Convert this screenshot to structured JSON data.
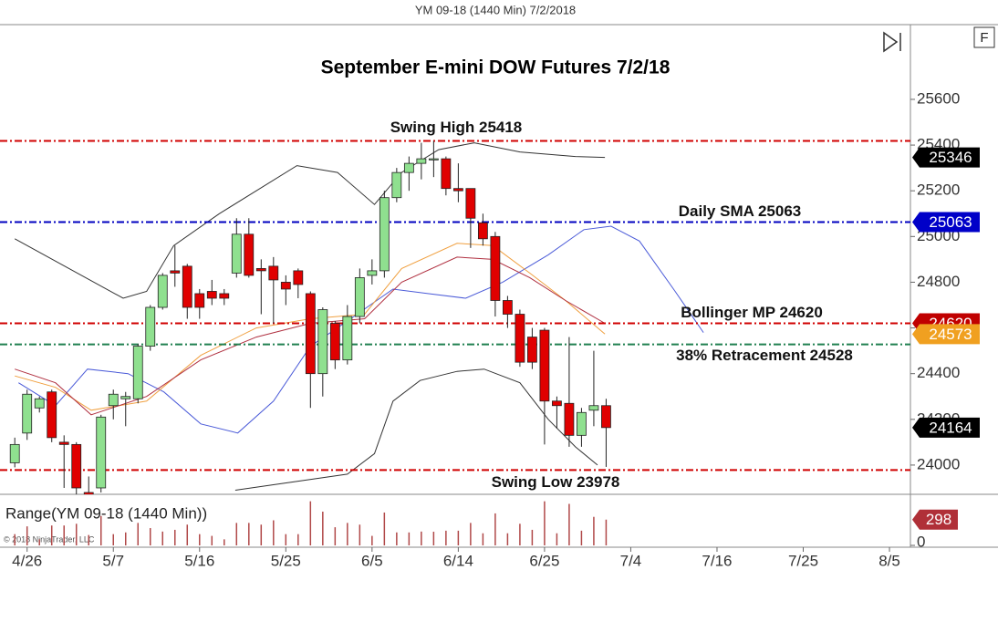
{
  "header": "YM 09-18 (1440 Min)  7/2/2018",
  "chart_data": [
    {
      "type": "candlestick",
      "title": "September E-mini DOW Futures 7/2/18",
      "up_color": "#8fe08f",
      "down_color": "#e00000",
      "open": [
        24010,
        24140,
        24250,
        24320,
        24100,
        24090,
        23880,
        23900,
        24260,
        24290,
        24290,
        24520,
        24690,
        24850,
        24870,
        24750,
        24760,
        24750,
        24840,
        25010,
        24860,
        24870,
        24800,
        24850,
        24750,
        24400,
        24620,
        24460,
        24650,
        24830,
        24850,
        25170,
        25280,
        25320,
        25335,
        25340,
        25210,
        25210,
        25060,
        25000,
        24720,
        24660,
        24560,
        24590,
        24280,
        24270,
        24130,
        24240,
        24260
      ],
      "high": [
        24120,
        24330,
        24300,
        24330,
        24130,
        24100,
        23950,
        24220,
        24330,
        24320,
        24530,
        24700,
        24840,
        24960,
        24880,
        24770,
        24810,
        24770,
        25080,
        25080,
        24900,
        24910,
        24830,
        24860,
        24760,
        24690,
        24630,
        24700,
        24860,
        24900,
        25200,
        25300,
        25350,
        25410,
        25418,
        25350,
        25320,
        25210,
        25100,
        25020,
        24740,
        24680,
        24600,
        24600,
        24300,
        24560,
        24250,
        24500,
        24290
      ],
      "low": [
        23990,
        24110,
        24230,
        24100,
        23900,
        23850,
        23830,
        23880,
        24200,
        24170,
        24270,
        24500,
        24680,
        24780,
        24640,
        24640,
        24700,
        24700,
        24820,
        24820,
        24660,
        24620,
        24700,
        24730,
        24250,
        24300,
        24420,
        24440,
        24620,
        24790,
        24820,
        25150,
        25200,
        25250,
        25260,
        25180,
        25150,
        24950,
        24960,
        24650,
        24600,
        24430,
        24420,
        24090,
        24160,
        24080,
        24080,
        24170,
        23992
      ],
      "close": [
        24090,
        24310,
        24290,
        24120,
        24090,
        23900,
        23870,
        24210,
        24310,
        24300,
        24520,
        24690,
        24830,
        24840,
        24690,
        24690,
        24730,
        24730,
        25010,
        24830,
        24850,
        24810,
        24770,
        24790,
        24400,
        24680,
        24460,
        24650,
        24820,
        24850,
        25170,
        25280,
        25320,
        25340,
        25340,
        25210,
        25200,
        25080,
        24990,
        24720,
        24660,
        24450,
        24450,
        24280,
        24260,
        24130,
        24230,
        24260,
        24164
      ],
      "xlim": [
        -1.2,
        72.7
      ],
      "xticks": [
        {
          "value": 1,
          "label": "4/26"
        },
        {
          "value": 8,
          "label": "5/7"
        },
        {
          "value": 15,
          "label": "5/16"
        },
        {
          "value": 22,
          "label": "5/25"
        },
        {
          "value": 29,
          "label": "6/5"
        },
        {
          "value": 36,
          "label": "6/14"
        },
        {
          "value": 43,
          "label": "6/25"
        },
        {
          "value": 50,
          "label": "7/4"
        },
        {
          "value": 57,
          "label": "7/16"
        },
        {
          "value": 64,
          "label": "7/25"
        },
        {
          "value": 71,
          "label": "8/5"
        }
      ],
      "ylim": [
        23872,
        25927
      ],
      "yticks": [
        24000,
        24200,
        24400,
        24600,
        24800,
        25000,
        25200,
        25400,
        25600
      ],
      "indicators": [
        {
          "color": "#333333",
          "x": [
            0,
            8.8,
            10.7,
            12.9,
            16.6,
            22.9,
            26.2,
            29.2,
            31.4,
            34.4,
            37.3,
            41,
            45.5,
            47.9
          ],
          "values": [
            24990,
            24730,
            24760,
            24960,
            25100,
            25310,
            25280,
            25140,
            25280,
            25380,
            25410,
            25370,
            25350,
            25346
          ]
        },
        {
          "color": "#333333",
          "x": [
            17.9,
            27,
            29.2,
            30.7,
            32.9,
            35.9,
            38.1,
            41,
            43.3,
            45.5,
            47.3
          ],
          "values": [
            23890,
            23960,
            24050,
            24280,
            24370,
            24410,
            24420,
            24360,
            24200,
            24080,
            24000
          ]
        },
        {
          "color": "#4a5ad8",
          "x": [
            0.3,
            3.3,
            5.9,
            9.2,
            12.1,
            15.1,
            18.1,
            21,
            24,
            27,
            30.7,
            33.6,
            36.6,
            39.6,
            43.3,
            46.2,
            48.4,
            50.7,
            53.6,
            55.9
          ],
          "values": [
            24360,
            24260,
            24420,
            24400,
            24320,
            24180,
            24140,
            24280,
            24520,
            24630,
            24770,
            24750,
            24730,
            24800,
            24920,
            25030,
            25045,
            24980,
            24760,
            24580
          ]
        },
        {
          "color": "#f0a040",
          "x": [
            0,
            3.3,
            6.2,
            10.7,
            15.1,
            19.6,
            24,
            28.4,
            31.4,
            35.9,
            38.8,
            41.8,
            44.7,
            47.9
          ],
          "values": [
            24390,
            24340,
            24240,
            24280,
            24480,
            24600,
            24640,
            24660,
            24860,
            24970,
            24960,
            24840,
            24720,
            24573
          ]
        },
        {
          "color": "#b03040",
          "x": [
            0,
            3.3,
            6.2,
            10.7,
            15.1,
            19.6,
            24,
            28.4,
            31.4,
            35.9,
            38.8,
            41.8,
            44.7,
            47.9
          ],
          "values": [
            24420,
            24360,
            24220,
            24300,
            24460,
            24560,
            24620,
            24640,
            24800,
            24910,
            24900,
            24820,
            24720,
            24620
          ]
        }
      ],
      "levels": [
        {
          "label": "Swing High 25418",
          "value": 25418,
          "color": "#d00000"
        },
        {
          "label": "Daily SMA 25063",
          "value": 25063,
          "color": "#0000c0"
        },
        {
          "label": "Bollinger MP 24620",
          "value": 24620,
          "color": "#d00000"
        },
        {
          "label": "38% Retracement 24528",
          "value": 24528,
          "color": "#208050"
        },
        {
          "label": "Swing Low 23978",
          "value": 23978,
          "color": "#d00000"
        }
      ],
      "price_tags": [
        {
          "value": 25346,
          "color": "#000000"
        },
        {
          "value": 25063,
          "color": "#0000c8"
        },
        {
          "value": 24620,
          "color": "#c00000"
        },
        {
          "value": 24573,
          "color": "#f0a020"
        },
        {
          "value": 24164,
          "color": "#000000"
        }
      ]
    },
    {
      "type": "range",
      "title": "Range(YM 09-18 (1440 Min))",
      "note": "© 2018 NinjaTrader, LLC",
      "color": "#b04848",
      "values": [
        130,
        220,
        70,
        230,
        230,
        250,
        120,
        340,
        130,
        150,
        260,
        200,
        160,
        180,
        240,
        130,
        110,
        70,
        260,
        260,
        240,
        290,
        130,
        130,
        510,
        390,
        210,
        260,
        240,
        110,
        380,
        150,
        150,
        160,
        158,
        170,
        170,
        260,
        140,
        370,
        140,
        250,
        180,
        510,
        140,
        480,
        170,
        330,
        298
      ],
      "ylim": [
        0,
        580
      ],
      "yticks": [
        0
      ],
      "price_tag": {
        "value": 298,
        "color": "#b03038"
      }
    }
  ]
}
